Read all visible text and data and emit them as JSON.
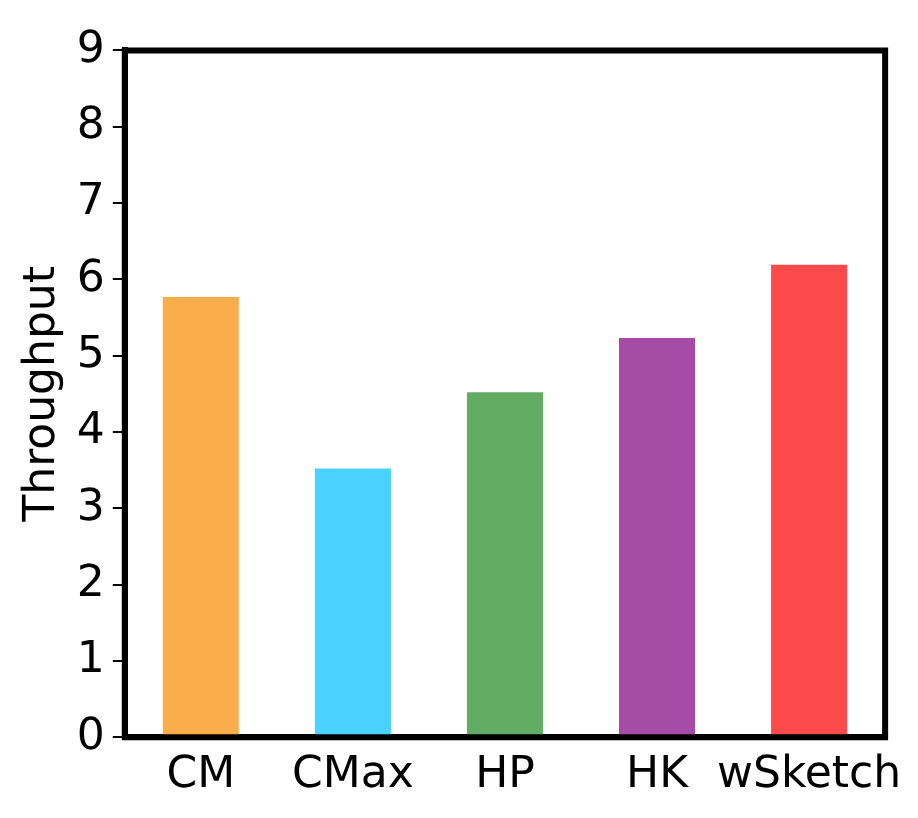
{
  "chart_data": {
    "type": "bar",
    "ylabel": "Throughput",
    "categories": [
      "CM",
      "CMax",
      "HP",
      "HK",
      "wSketch"
    ],
    "values": [
      5.77,
      3.52,
      4.52,
      5.23,
      6.19
    ],
    "colors": [
      "#fbad4c",
      "#4bd1fd",
      "#63ac64",
      "#a64ca6",
      "#fe4a4a"
    ],
    "ylim": [
      0,
      9
    ],
    "yticks": [
      0,
      1,
      2,
      3,
      4,
      5,
      6,
      7,
      8,
      9
    ],
    "grid": false,
    "legend": false
  }
}
